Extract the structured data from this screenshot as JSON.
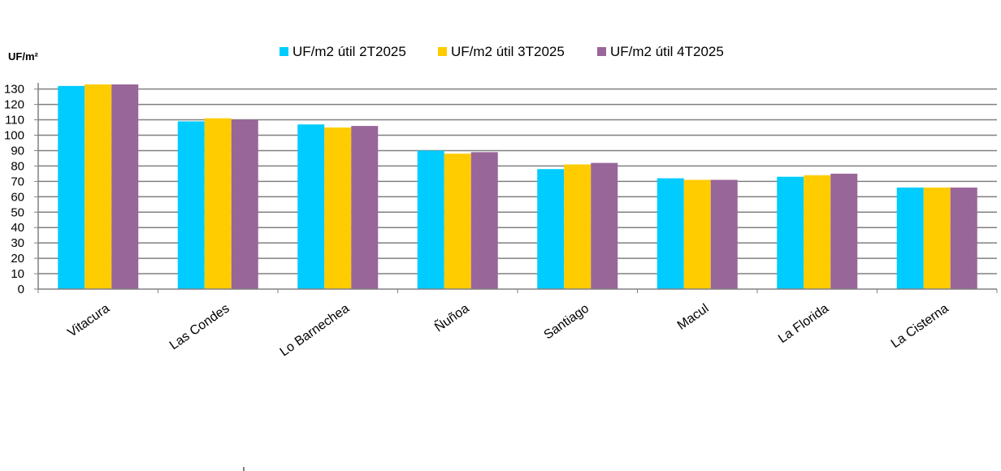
{
  "chart_data": {
    "type": "bar",
    "title": "",
    "xlabel": "",
    "ylabel": "UF/m²",
    "ylim": [
      0,
      135
    ],
    "yticks": [
      0,
      10,
      20,
      30,
      40,
      50,
      60,
      70,
      80,
      90,
      100,
      110,
      120,
      130
    ],
    "grid": true,
    "legend_position": "top-center",
    "categories": [
      "Vitacura",
      "Las Condes",
      "Lo Barnechea",
      "Ñuñoa",
      "Santiago",
      "Macul",
      "La Florida",
      "La Cisterna"
    ],
    "series": [
      {
        "name": "UF/m2 útil 2T2025",
        "color": "#00ccff",
        "values": [
          132,
          109,
          107,
          90,
          78,
          72,
          73,
          66
        ]
      },
      {
        "name": "UF/m2 útil 3T2025",
        "color": "#ffcc00",
        "values": [
          133,
          111,
          105,
          88,
          81,
          71,
          74,
          66
        ]
      },
      {
        "name": "UF/m2 útil 4T2025",
        "color": "#996699",
        "values": [
          133,
          110,
          106,
          89,
          82,
          71,
          75,
          66
        ]
      }
    ]
  }
}
